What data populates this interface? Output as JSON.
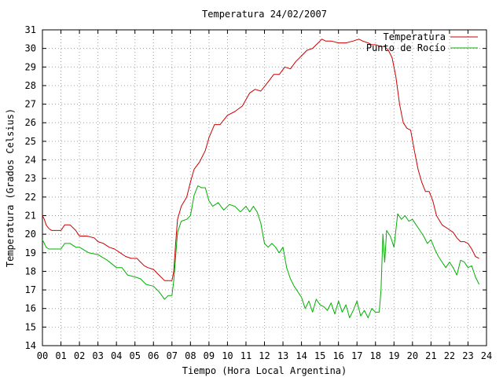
{
  "chart_data": {
    "type": "line",
    "title": "Temperatura 24/02/2007",
    "xlabel": "Tiempo (Hora Local Argentina)",
    "ylabel": "Temperatura (Grados Celsius)",
    "xlim": [
      0,
      24
    ],
    "ylim": [
      14,
      31
    ],
    "grid": true,
    "legend_position": "top-right",
    "x_tick_labels": [
      "00",
      "01",
      "02",
      "03",
      "04",
      "05",
      "06",
      "07",
      "08",
      "09",
      "10",
      "11",
      "12",
      "13",
      "14",
      "15",
      "16",
      "17",
      "18",
      "19",
      "20",
      "21",
      "22",
      "23",
      "24"
    ],
    "y_tick_labels": [
      "14",
      "15",
      "16",
      "17",
      "18",
      "19",
      "20",
      "21",
      "22",
      "23",
      "24",
      "25",
      "26",
      "27",
      "28",
      "29",
      "30",
      "31"
    ],
    "series": [
      {
        "name": "Temperatura",
        "color": "#cc0000",
        "x": [
          0,
          0.1,
          0.2,
          0.35,
          0.5,
          0.8,
          1.0,
          1.2,
          1.5,
          1.8,
          2.0,
          2.4,
          2.8,
          3.0,
          3.3,
          3.6,
          3.9,
          4.2,
          4.5,
          4.8,
          5.1,
          5.3,
          5.5,
          5.7,
          6.0,
          6.3,
          6.6,
          6.9,
          7.0,
          7.1,
          7.2,
          7.3,
          7.5,
          7.8,
          8.0,
          8.2,
          8.5,
          8.8,
          9.0,
          9.3,
          9.6,
          10.0,
          10.4,
          10.8,
          11.2,
          11.5,
          11.8,
          12.2,
          12.5,
          12.8,
          13.1,
          13.4,
          13.7,
          14.0,
          14.3,
          14.6,
          14.9,
          15.1,
          15.3,
          15.6,
          16.0,
          16.4,
          16.8,
          17.1,
          17.3,
          17.6,
          17.8,
          18.0,
          18.3,
          18.5,
          18.7,
          18.9,
          19.1,
          19.3,
          19.5,
          19.7,
          19.9,
          20.1,
          20.3,
          20.5,
          20.7,
          20.9,
          21.1,
          21.3,
          21.6,
          21.9,
          22.2,
          22.4,
          22.6,
          22.8,
          23.0,
          23.2,
          23.4,
          23.6
        ],
        "y": [
          21.0,
          20.8,
          20.5,
          20.3,
          20.2,
          20.2,
          20.2,
          20.5,
          20.5,
          20.2,
          19.9,
          19.9,
          19.8,
          19.6,
          19.5,
          19.3,
          19.2,
          19.0,
          18.8,
          18.7,
          18.7,
          18.5,
          18.3,
          18.2,
          18.1,
          17.8,
          17.5,
          17.5,
          17.5,
          18.0,
          19.5,
          20.8,
          21.5,
          22.0,
          22.8,
          23.5,
          23.9,
          24.5,
          25.2,
          25.9,
          25.9,
          26.4,
          26.6,
          26.9,
          27.6,
          27.8,
          27.7,
          28.2,
          28.6,
          28.6,
          29.0,
          28.9,
          29.3,
          29.6,
          29.9,
          30.0,
          30.3,
          30.5,
          30.4,
          30.4,
          30.3,
          30.3,
          30.4,
          30.5,
          30.4,
          30.3,
          30.2,
          30.2,
          30.1,
          30.1,
          29.9,
          29.5,
          28.5,
          27.0,
          26.0,
          25.7,
          25.6,
          24.5,
          23.5,
          22.8,
          22.3,
          22.3,
          21.8,
          21.0,
          20.5,
          20.3,
          20.1,
          19.8,
          19.6,
          19.6,
          19.5,
          19.2,
          18.8,
          18.7
        ]
      },
      {
        "name": "Punto de Rocío",
        "color": "#00b000",
        "x": [
          0,
          0.1,
          0.2,
          0.35,
          0.5,
          0.8,
          1.0,
          1.2,
          1.5,
          1.8,
          2.0,
          2.5,
          3.0,
          3.5,
          4.0,
          4.3,
          4.6,
          5.0,
          5.3,
          5.6,
          6.0,
          6.3,
          6.6,
          6.8,
          7.0,
          7.1,
          7.2,
          7.3,
          7.5,
          7.8,
          8.0,
          8.2,
          8.4,
          8.6,
          8.8,
          9.0,
          9.2,
          9.5,
          9.8,
          10.1,
          10.4,
          10.7,
          11.0,
          11.2,
          11.4,
          11.6,
          11.8,
          12.0,
          12.2,
          12.4,
          12.6,
          12.8,
          13.0,
          13.2,
          13.4,
          13.6,
          13.8,
          14.0,
          14.2,
          14.4,
          14.6,
          14.8,
          15.0,
          15.2,
          15.4,
          15.6,
          15.8,
          16.0,
          16.2,
          16.4,
          16.6,
          16.8,
          17.0,
          17.2,
          17.4,
          17.6,
          17.8,
          18.0,
          18.2,
          18.3,
          18.4,
          18.5,
          18.6,
          18.8,
          19.0,
          19.2,
          19.4,
          19.6,
          19.8,
          20.0,
          20.2,
          20.4,
          20.6,
          20.8,
          21.0,
          21.2,
          21.4,
          21.6,
          21.8,
          22.0,
          22.2,
          22.4,
          22.6,
          22.8,
          23.0,
          23.2,
          23.4,
          23.6
        ],
        "y": [
          19.7,
          19.5,
          19.3,
          19.2,
          19.2,
          19.2,
          19.2,
          19.5,
          19.5,
          19.3,
          19.3,
          19.0,
          18.9,
          18.6,
          18.2,
          18.2,
          17.8,
          17.7,
          17.6,
          17.3,
          17.2,
          16.9,
          16.5,
          16.7,
          16.7,
          17.5,
          18.8,
          20.1,
          20.7,
          20.8,
          21.0,
          22.1,
          22.6,
          22.5,
          22.5,
          21.8,
          21.5,
          21.7,
          21.3,
          21.6,
          21.5,
          21.2,
          21.5,
          21.2,
          21.5,
          21.2,
          20.6,
          19.5,
          19.3,
          19.5,
          19.3,
          19.0,
          19.3,
          18.2,
          17.6,
          17.2,
          16.9,
          16.6,
          16.0,
          16.4,
          15.8,
          16.5,
          16.2,
          16.1,
          15.9,
          16.3,
          15.7,
          16.4,
          15.8,
          16.2,
          15.5,
          15.9,
          16.4,
          15.6,
          15.9,
          15.5,
          16.0,
          15.8,
          15.8,
          17.0,
          20.0,
          18.5,
          20.2,
          19.9,
          19.3,
          21.1,
          20.8,
          21.0,
          20.7,
          20.8,
          20.5,
          20.2,
          19.9,
          19.5,
          19.7,
          19.2,
          18.8,
          18.5,
          18.2,
          18.5,
          18.2,
          17.8,
          18.6,
          18.5,
          18.2,
          18.3,
          17.7,
          17.3
        ]
      }
    ]
  }
}
